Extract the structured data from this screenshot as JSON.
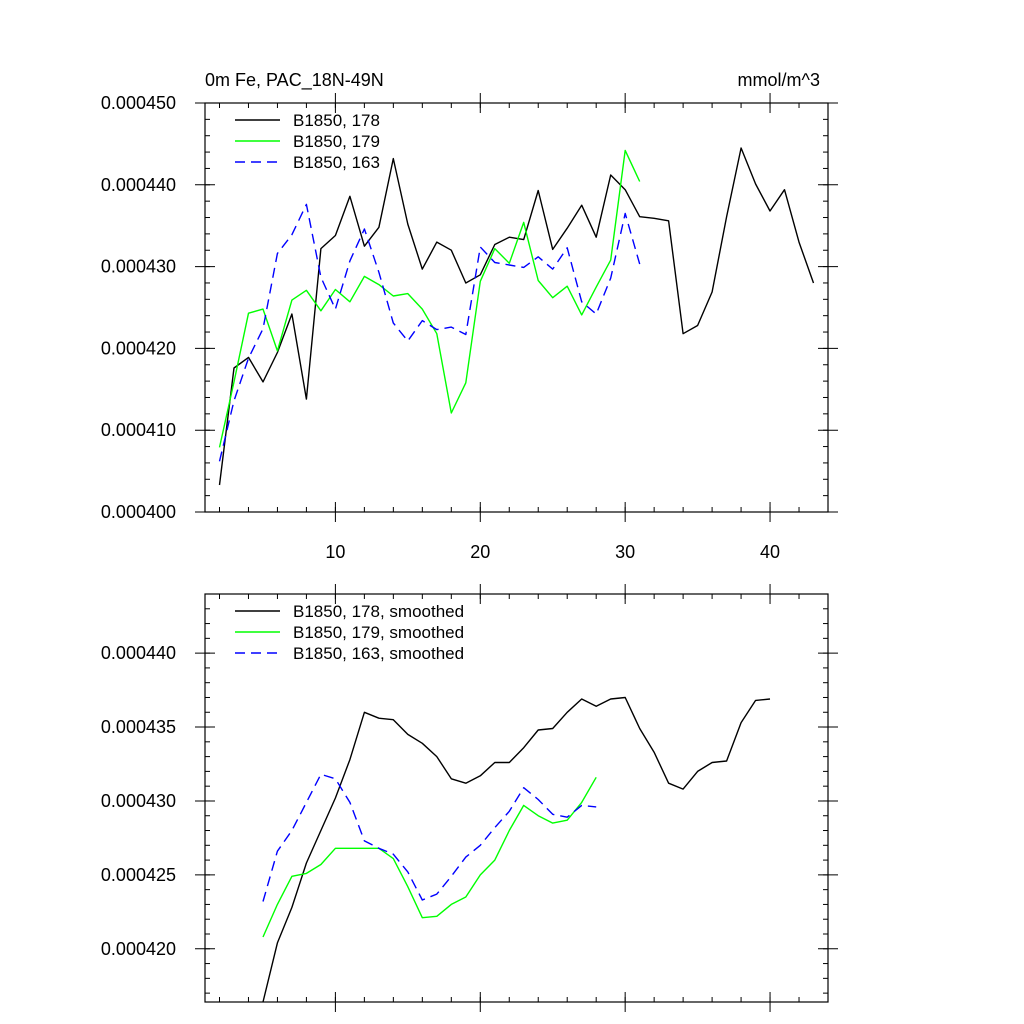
{
  "chart_data": [
    {
      "type": "line",
      "title": "0m Fe, PAC_18N-49N",
      "units": "mmol/m^3",
      "xlim": [
        1,
        44
      ],
      "ylim": [
        0.0004,
        0.00045
      ],
      "xticks": [
        10,
        20,
        30,
        40
      ],
      "xtick_labels": [
        "10",
        "20",
        "30",
        "40"
      ],
      "yticks": [
        0.0004,
        0.00041,
        0.00042,
        0.00043,
        0.00044,
        0.00045
      ],
      "ytick_labels": [
        "0.000400",
        "0.000410",
        "0.000420",
        "0.000430",
        "0.000440",
        "0.000450"
      ],
      "legend_position": "top-left",
      "series": [
        {
          "name": "B1850, 178",
          "color": "#000000",
          "dash": "solid",
          "x": [
            2,
            3,
            4,
            5,
            6,
            7,
            8,
            9,
            10,
            11,
            12,
            13,
            14,
            15,
            16,
            17,
            18,
            19,
            20,
            21,
            22,
            23,
            24,
            25,
            26,
            27,
            28,
            29,
            30,
            31,
            32,
            33,
            34,
            35,
            36,
            37,
            38,
            39,
            40,
            41,
            42,
            43
          ],
          "values": [
            0.0004033,
            0.0004176,
            0.0004189,
            0.0004159,
            0.0004195,
            0.0004242,
            0.0004138,
            0.0004322,
            0.0004338,
            0.0004386,
            0.0004325,
            0.0004348,
            0.0004432,
            0.0004352,
            0.0004297,
            0.000433,
            0.000432,
            0.000428,
            0.000429,
            0.0004327,
            0.0004336,
            0.0004333,
            0.0004393,
            0.0004321,
            0.0004347,
            0.0004375,
            0.0004336,
            0.0004412,
            0.0004394,
            0.0004361,
            0.0004359,
            0.0004356,
            0.0004218,
            0.0004228,
            0.0004269,
            0.0004361,
            0.0004445,
            0.0004401,
            0.0004368,
            0.0004394,
            0.000433,
            0.000428
          ]
        },
        {
          "name": "B1850, 179",
          "color": "#00ff00",
          "dash": "solid",
          "x": [
            2,
            3,
            4,
            5,
            6,
            7,
            8,
            9,
            10,
            11,
            12,
            13,
            14,
            15,
            16,
            17,
            18,
            19,
            20,
            21,
            22,
            23,
            24,
            25,
            26,
            27,
            28,
            29,
            30,
            31
          ],
          "values": [
            0.0004079,
            0.0004159,
            0.0004243,
            0.0004248,
            0.0004197,
            0.0004259,
            0.0004271,
            0.0004246,
            0.0004272,
            0.0004257,
            0.0004288,
            0.0004278,
            0.0004264,
            0.0004267,
            0.0004248,
            0.0004218,
            0.0004121,
            0.0004158,
            0.0004282,
            0.0004322,
            0.0004304,
            0.0004354,
            0.0004283,
            0.0004262,
            0.0004276,
            0.0004241,
            0.0004275,
            0.0004308,
            0.0004442,
            0.0004404
          ]
        },
        {
          "name": "B1850, 163",
          "color": "#0000ff",
          "dash": "dashed",
          "x": [
            2,
            3,
            4,
            5,
            6,
            7,
            8,
            9,
            10,
            11,
            12,
            13,
            14,
            15,
            16,
            17,
            18,
            19,
            20,
            21,
            22,
            23,
            24,
            25,
            26,
            27,
            28,
            29,
            30,
            31
          ],
          "values": [
            0.0004062,
            0.0004136,
            0.0004188,
            0.0004224,
            0.0004316,
            0.0004339,
            0.0004376,
            0.0004287,
            0.0004248,
            0.0004307,
            0.0004346,
            0.0004293,
            0.0004231,
            0.0004209,
            0.0004234,
            0.0004223,
            0.0004226,
            0.0004217,
            0.0004324,
            0.0004305,
            0.0004302,
            0.0004299,
            0.0004312,
            0.0004297,
            0.0004323,
            0.0004257,
            0.0004242,
            0.0004286,
            0.0004365,
            0.0004303
          ]
        }
      ]
    },
    {
      "type": "line",
      "title": "",
      "xlim": [
        1,
        44
      ],
      "ylim": [
        0.0004164,
        0.000444
      ],
      "xticks": [
        10,
        20,
        30,
        40
      ],
      "xtick_labels": [],
      "yticks": [
        0.00042,
        0.000425,
        0.00043,
        0.000435,
        0.00044
      ],
      "ytick_labels": [
        "0.000420",
        "0.000425",
        "0.000430",
        "0.000435",
        "0.000440"
      ],
      "legend_position": "top-left",
      "series": [
        {
          "name": "B1850, 178, smoothed",
          "color": "#000000",
          "dash": "solid",
          "x": [
            5,
            6,
            7,
            8,
            9,
            10,
            11,
            12,
            13,
            14,
            15,
            16,
            17,
            18,
            19,
            20,
            21,
            22,
            23,
            24,
            25,
            26,
            27,
            28,
            29,
            30,
            31,
            32,
            33,
            34,
            35,
            36,
            37,
            38,
            39,
            40
          ],
          "values": [
            0.0004164,
            0.0004204,
            0.0004228,
            0.0004258,
            0.000428,
            0.0004302,
            0.0004328,
            0.000436,
            0.0004356,
            0.0004355,
            0.0004345,
            0.0004339,
            0.000433,
            0.0004315,
            0.0004312,
            0.0004317,
            0.0004326,
            0.0004326,
            0.0004336,
            0.0004348,
            0.0004349,
            0.000436,
            0.0004369,
            0.0004364,
            0.0004369,
            0.000437,
            0.0004349,
            0.0004333,
            0.0004312,
            0.0004308,
            0.000432,
            0.0004326,
            0.0004327,
            0.0004353,
            0.0004368,
            0.0004369
          ]
        },
        {
          "name": "B1850, 179, smoothed",
          "color": "#00ff00",
          "dash": "solid",
          "x": [
            5,
            6,
            7,
            8,
            9,
            10,
            11,
            12,
            13,
            14,
            15,
            16,
            17,
            18,
            19,
            20,
            21,
            22,
            23,
            24,
            25,
            26,
            27,
            28
          ],
          "values": [
            0.0004208,
            0.000423,
            0.0004249,
            0.0004251,
            0.0004257,
            0.0004268,
            0.0004268,
            0.0004268,
            0.0004268,
            0.0004261,
            0.0004242,
            0.0004221,
            0.0004222,
            0.000423,
            0.0004235,
            0.000425,
            0.000426,
            0.000428,
            0.0004297,
            0.000429,
            0.0004285,
            0.0004287,
            0.0004299,
            0.0004316
          ]
        },
        {
          "name": "B1850, 163, smoothed",
          "color": "#0000ff",
          "dash": "dashed",
          "x": [
            5,
            6,
            7,
            8,
            9,
            10,
            11,
            12,
            13,
            14,
            15,
            16,
            17,
            18,
            19,
            20,
            21,
            22,
            23,
            24,
            25,
            26,
            27,
            28
          ],
          "values": [
            0.0004232,
            0.0004266,
            0.000428,
            0.0004299,
            0.0004318,
            0.0004315,
            0.0004299,
            0.0004273,
            0.0004268,
            0.0004264,
            0.0004252,
            0.0004233,
            0.0004237,
            0.0004249,
            0.0004262,
            0.000427,
            0.0004282,
            0.0004293,
            0.0004309,
            0.0004301,
            0.0004291,
            0.0004289,
            0.0004297,
            0.0004296
          ]
        }
      ]
    }
  ]
}
